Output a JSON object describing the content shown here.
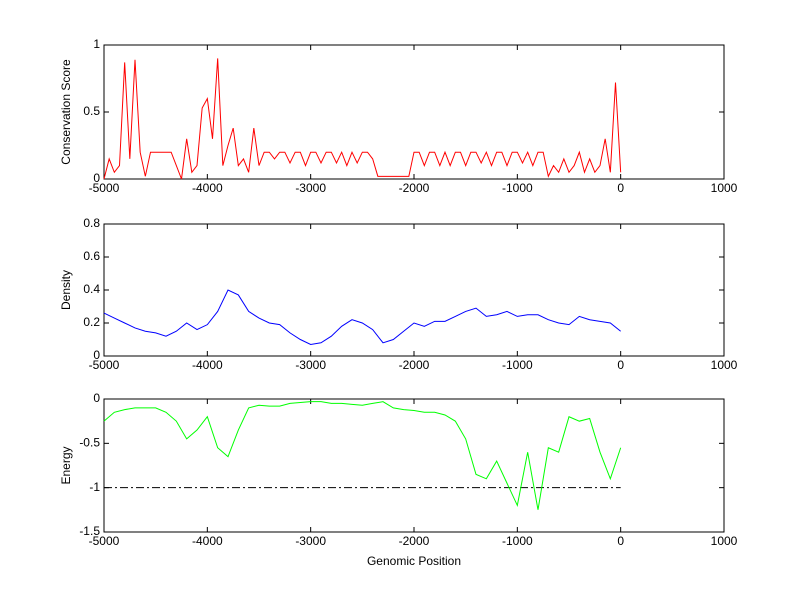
{
  "chart_data": [
    {
      "type": "line",
      "ylabel": "Conservation Score",
      "x": [
        -5000,
        -4950,
        -4900,
        -4850,
        -4800,
        -4750,
        -4700,
        -4650,
        -4600,
        -4550,
        -4500,
        -4450,
        -4400,
        -4350,
        -4300,
        -4250,
        -4200,
        -4150,
        -4100,
        -4050,
        -4000,
        -3950,
        -3900,
        -3850,
        -3800,
        -3750,
        -3700,
        -3650,
        -3600,
        -3550,
        -3500,
        -3450,
        -3400,
        -3350,
        -3300,
        -3250,
        -3200,
        -3150,
        -3100,
        -3050,
        -3000,
        -2950,
        -2900,
        -2850,
        -2800,
        -2750,
        -2700,
        -2650,
        -2600,
        -2550,
        -2500,
        -2450,
        -2400,
        -2350,
        -2300,
        -2250,
        -2200,
        -2150,
        -2100,
        -2050,
        -2000,
        -1950,
        -1900,
        -1850,
        -1800,
        -1750,
        -1700,
        -1650,
        -1600,
        -1550,
        -1500,
        -1450,
        -1400,
        -1350,
        -1300,
        -1250,
        -1200,
        -1150,
        -1100,
        -1050,
        -1000,
        -950,
        -900,
        -850,
        -800,
        -750,
        -700,
        -650,
        -600,
        -550,
        -500,
        -450,
        -400,
        -350,
        -300,
        -250,
        -200,
        -150,
        -100,
        -50,
        0
      ],
      "series": [
        {
          "color": "#ff0000",
          "values": [
            0,
            0.15,
            0.05,
            0.1,
            0.87,
            0.15,
            0.89,
            0.2,
            0.02,
            0.2,
            0.2,
            0.2,
            0.2,
            0.2,
            0.1,
            0,
            0.3,
            0.05,
            0.1,
            0.53,
            0.6,
            0.3,
            0.9,
            0.1,
            0.25,
            0.38,
            0.1,
            0.15,
            0.05,
            0.38,
            0.1,
            0.2,
            0.2,
            0.15,
            0.2,
            0.2,
            0.12,
            0.2,
            0.2,
            0.1,
            0.2,
            0.2,
            0.12,
            0.2,
            0.2,
            0.12,
            0.2,
            0.1,
            0.2,
            0.12,
            0.2,
            0.2,
            0.15,
            0.02,
            0.02,
            0.02,
            0.02,
            0.02,
            0.02,
            0.02,
            0.2,
            0.2,
            0.1,
            0.2,
            0.2,
            0.1,
            0.2,
            0.1,
            0.2,
            0.2,
            0.1,
            0.2,
            0.2,
            0.12,
            0.2,
            0.1,
            0.2,
            0.2,
            0.1,
            0.2,
            0.2,
            0.12,
            0.2,
            0.1,
            0.2,
            0.2,
            0.02,
            0.1,
            0.05,
            0.15,
            0.05,
            0.1,
            0.2,
            0.05,
            0.15,
            0.05,
            0.1,
            0.3,
            0.05,
            0.72,
            0.05
          ]
        }
      ],
      "xlim": [
        -5000,
        1000
      ],
      "xticks": [
        -5000,
        -4000,
        -3000,
        -2000,
        -1000,
        0,
        1000
      ],
      "ylim": [
        0,
        1
      ],
      "yticks": [
        0,
        0.5,
        1
      ]
    },
    {
      "type": "line",
      "ylabel": "Density",
      "x": [
        -5000,
        -4900,
        -4800,
        -4700,
        -4600,
        -4500,
        -4400,
        -4300,
        -4200,
        -4100,
        -4000,
        -3900,
        -3800,
        -3700,
        -3600,
        -3500,
        -3400,
        -3300,
        -3200,
        -3100,
        -3000,
        -2900,
        -2800,
        -2700,
        -2600,
        -2500,
        -2400,
        -2300,
        -2200,
        -2100,
        -2000,
        -1900,
        -1800,
        -1700,
        -1600,
        -1500,
        -1400,
        -1300,
        -1200,
        -1100,
        -1000,
        -900,
        -800,
        -700,
        -600,
        -500,
        -400,
        -300,
        -200,
        -100,
        0
      ],
      "series": [
        {
          "color": "#0000ff",
          "values": [
            0.26,
            0.23,
            0.2,
            0.17,
            0.15,
            0.14,
            0.12,
            0.15,
            0.2,
            0.16,
            0.19,
            0.27,
            0.4,
            0.37,
            0.27,
            0.23,
            0.2,
            0.19,
            0.14,
            0.1,
            0.07,
            0.08,
            0.12,
            0.18,
            0.22,
            0.2,
            0.16,
            0.08,
            0.1,
            0.15,
            0.2,
            0.18,
            0.21,
            0.21,
            0.24,
            0.27,
            0.29,
            0.24,
            0.25,
            0.27,
            0.24,
            0.25,
            0.25,
            0.22,
            0.2,
            0.19,
            0.24,
            0.22,
            0.21,
            0.2,
            0.15
          ]
        }
      ],
      "xlim": [
        -5000,
        1000
      ],
      "xticks": [
        -5000,
        -4000,
        -3000,
        -2000,
        -1000,
        0,
        1000
      ],
      "ylim": [
        0,
        0.8
      ],
      "yticks": [
        0,
        0.2,
        0.4,
        0.6,
        0.8
      ]
    },
    {
      "type": "line",
      "ylabel": "Energy",
      "xlabel": "Genomic Position",
      "x": [
        -5000,
        -4900,
        -4800,
        -4700,
        -4600,
        -4500,
        -4400,
        -4300,
        -4200,
        -4100,
        -4000,
        -3900,
        -3800,
        -3700,
        -3600,
        -3500,
        -3400,
        -3300,
        -3200,
        -3100,
        -3000,
        -2900,
        -2800,
        -2700,
        -2600,
        -2500,
        -2400,
        -2300,
        -2200,
        -2100,
        -2000,
        -1900,
        -1800,
        -1700,
        -1600,
        -1500,
        -1400,
        -1300,
        -1200,
        -1100,
        -1000,
        -900,
        -800,
        -700,
        -600,
        -500,
        -400,
        -300,
        -200,
        -100,
        0
      ],
      "series": [
        {
          "color": "#00ff00",
          "values": [
            -0.25,
            -0.15,
            -0.12,
            -0.1,
            -0.1,
            -0.1,
            -0.15,
            -0.25,
            -0.45,
            -0.35,
            -0.2,
            -0.55,
            -0.65,
            -0.35,
            -0.1,
            -0.07,
            -0.08,
            -0.08,
            -0.05,
            -0.04,
            -0.03,
            -0.03,
            -0.05,
            -0.05,
            -0.06,
            -0.07,
            -0.05,
            -0.03,
            -0.1,
            -0.12,
            -0.13,
            -0.15,
            -0.15,
            -0.18,
            -0.25,
            -0.45,
            -0.85,
            -0.9,
            -0.7,
            -0.95,
            -1.2,
            -0.6,
            -1.25,
            -0.55,
            -0.6,
            -0.2,
            -0.25,
            -0.22,
            -0.6,
            -0.9,
            -0.55
          ]
        }
      ],
      "reference_line": {
        "y": -1,
        "x": [
          -5000,
          0
        ],
        "color": "#000000",
        "style": "dashdot"
      },
      "xlim": [
        -5000,
        1000
      ],
      "xticks": [
        -5000,
        -4000,
        -3000,
        -2000,
        -1000,
        0,
        1000
      ],
      "ylim": [
        -1.5,
        0
      ],
      "yticks": [
        -1.5,
        -1,
        -0.5,
        0
      ]
    }
  ]
}
